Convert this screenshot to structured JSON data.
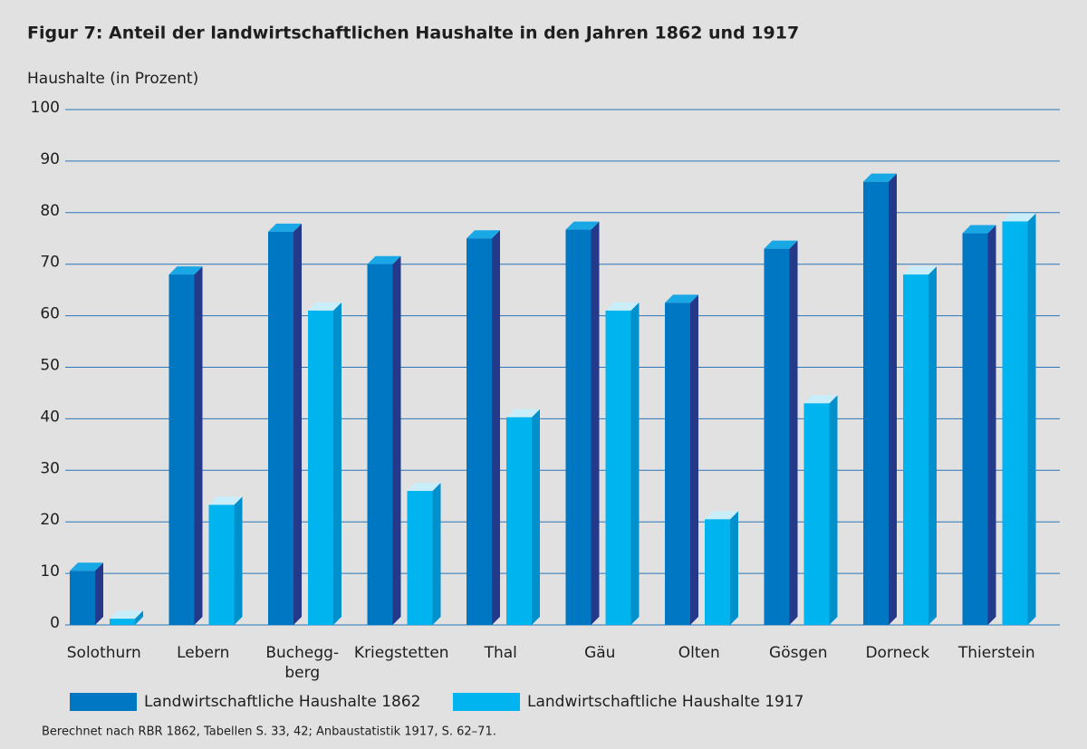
{
  "chart_data": {
    "type": "bar3d",
    "title": "Figur 7: Anteil der landwirtschaftlichen Haushalte in den Jahren 1862 und 1917",
    "y_label": "Haushalte (in Prozent)",
    "categories": [
      "Solothurn",
      "Lebern",
      "Buchegg-berg",
      "Kriegstetten",
      "Thal",
      "Gäu",
      "Olten",
      "Gösgen",
      "Dorneck",
      "Thierstein"
    ],
    "series": [
      {
        "name": "Landwirtschaftliche Haushalte 1862",
        "color": "#0077c2",
        "values": [
          10.5,
          68,
          76.3,
          70,
          75,
          76.7,
          62.5,
          73,
          86,
          76
        ]
      },
      {
        "name": "Landwirtschaftliche Haushalte 1917",
        "color": "#00b4ef",
        "values": [
          1.2,
          23.3,
          61,
          26,
          40.3,
          61,
          20.5,
          43,
          68,
          78.3
        ]
      }
    ],
    "ylim": [
      0,
      100
    ],
    "yticks": [
      0,
      10,
      20,
      30,
      40,
      50,
      60,
      70,
      80,
      90,
      100
    ],
    "grid": true,
    "source": "Berechnet nach RBR 1862, Tabellen S. 33, 42; Anbaustatistik 1917, S. 62–71."
  }
}
